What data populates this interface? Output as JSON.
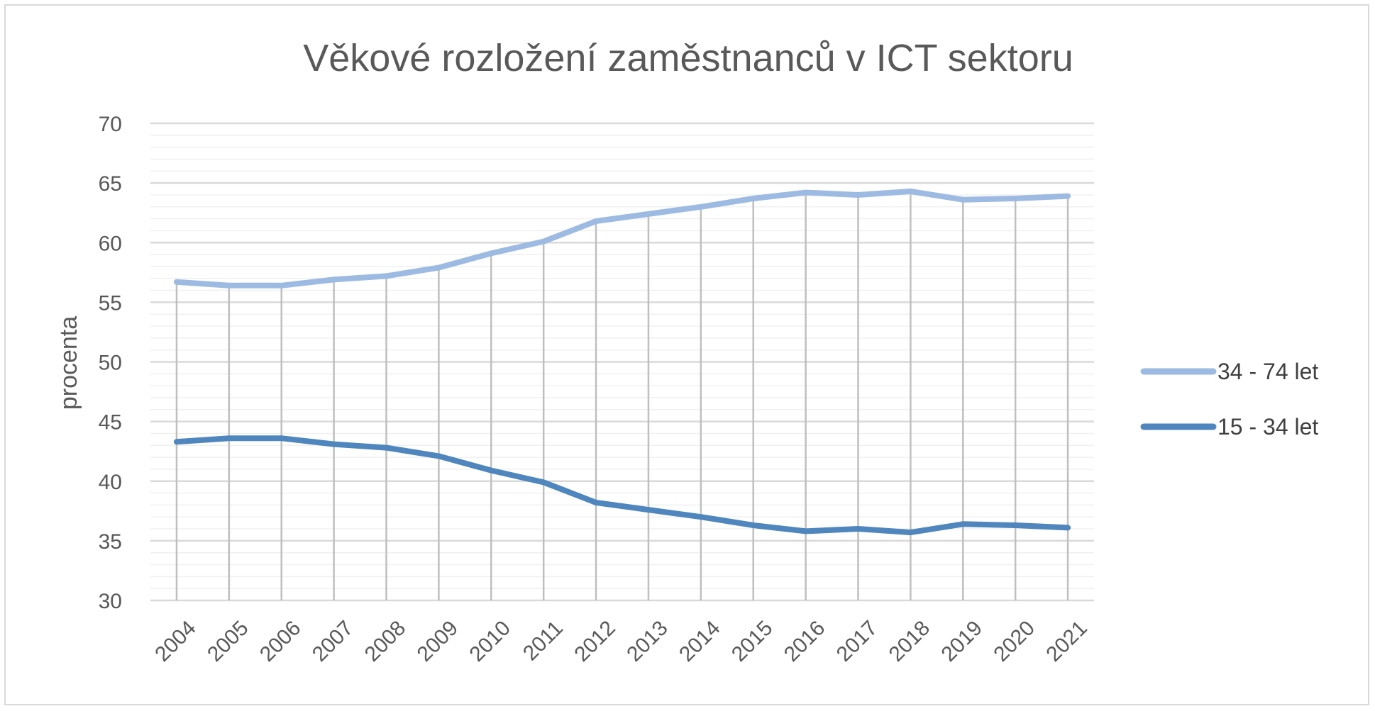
{
  "chart_data": {
    "type": "line",
    "title": "Věkové rozložení zaměstnanců v ICT sektoru",
    "xlabel": "",
    "ylabel": "procenta",
    "ylim": [
      30,
      70
    ],
    "yticks": [
      30,
      35,
      40,
      45,
      50,
      55,
      60,
      65,
      70
    ],
    "minor_grid_step": 1,
    "grid": true,
    "legend_position": "right",
    "categories": [
      "2004",
      "2005",
      "2006",
      "2007",
      "2008",
      "2009",
      "2010",
      "2011",
      "2012",
      "2013",
      "2014",
      "2015",
      "2016",
      "2017",
      "2018",
      "2019",
      "2020",
      "2021"
    ],
    "series": [
      {
        "name": "34 - 74 let",
        "color": "#9dbbe2",
        "values": [
          56.7,
          56.4,
          56.4,
          56.9,
          57.2,
          57.9,
          59.1,
          60.1,
          61.8,
          62.4,
          63.0,
          63.7,
          64.2,
          64.0,
          64.3,
          63.6,
          63.7,
          63.9
        ]
      },
      {
        "name": "15 - 34 let",
        "color": "#4e86bd",
        "values": [
          43.3,
          43.6,
          43.6,
          43.1,
          42.8,
          42.1,
          40.9,
          39.9,
          38.2,
          37.6,
          37.0,
          36.3,
          35.8,
          36.0,
          35.7,
          36.4,
          36.3,
          36.1
        ]
      }
    ]
  }
}
